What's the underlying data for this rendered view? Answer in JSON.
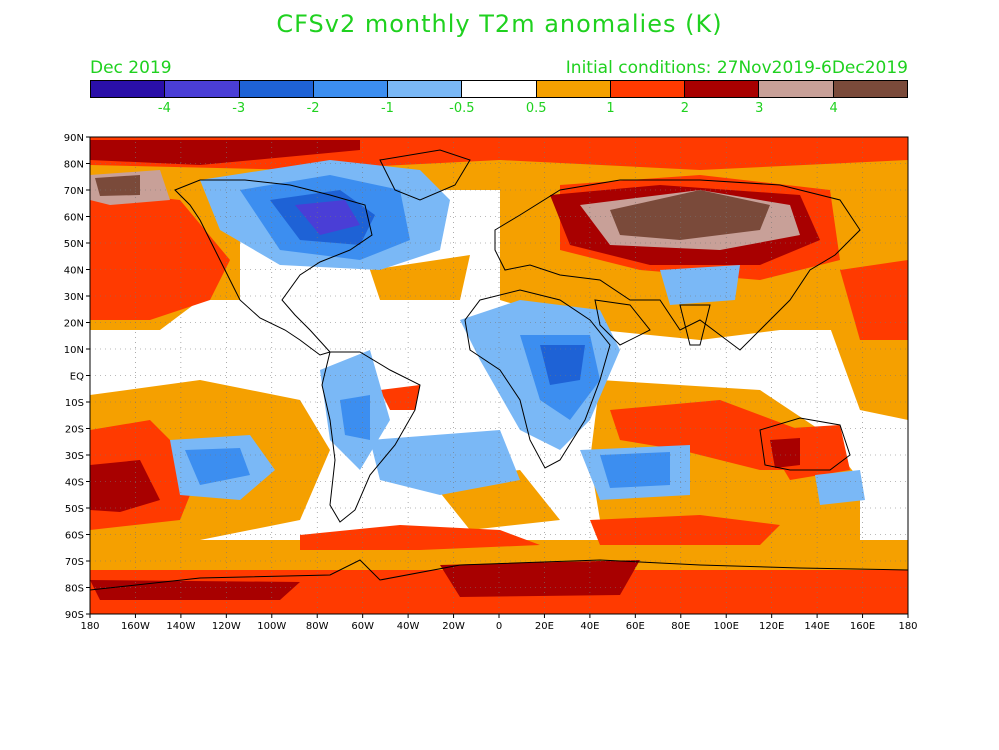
{
  "title": "CFSv2 monthly T2m anomalies (K)",
  "forecast_month": "Dec 2019",
  "initial_conditions": "Initial conditions: 27Nov2019-6Dec2019",
  "colorbar": {
    "colors": [
      "#2a0fa8",
      "#4a3ed6",
      "#1e62d6",
      "#3c8ef0",
      "#7ab8f6",
      "#ffffff",
      "#f5a000",
      "#ff3a00",
      "#a80000",
      "#c8a098",
      "#7a4a3a"
    ],
    "labels": [
      "-4",
      "-3",
      "-2",
      "-1",
      "-0.5",
      "0.5",
      "1",
      "2",
      "3",
      "4"
    ]
  },
  "axes": {
    "lat_labels": [
      "90N",
      "80N",
      "70N",
      "60N",
      "50N",
      "40N",
      "30N",
      "20N",
      "10N",
      "EQ",
      "10S",
      "20S",
      "30S",
      "40S",
      "50S",
      "60S",
      "70S",
      "80S",
      "90S"
    ],
    "lon_labels": [
      "180",
      "160W",
      "140W",
      "120W",
      "100W",
      "80W",
      "60W",
      "40W",
      "20W",
      "0",
      "20E",
      "40E",
      "60E",
      "80E",
      "100E",
      "120E",
      "140E",
      "160E",
      "180"
    ]
  },
  "legend": {
    "icon": "colorbar-legend",
    "grid": "dotted"
  }
}
